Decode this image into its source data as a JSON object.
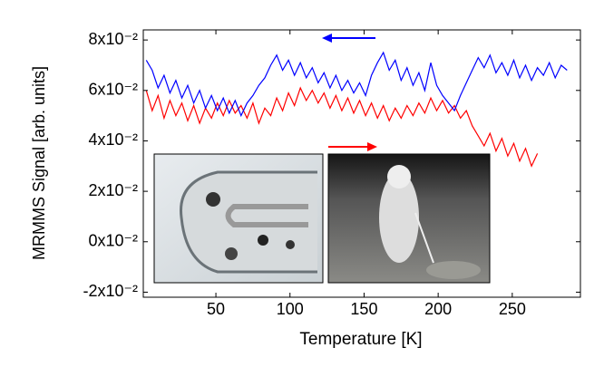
{
  "chart_data": {
    "type": "line",
    "x_label": "Temperature [K]",
    "y_label": "MRMMS Signal [arb. units]",
    "xlim": [
      1,
      296
    ],
    "xticks": [
      50,
      100,
      150,
      200,
      250
    ],
    "ylim": [
      -0.022,
      0.084
    ],
    "yticks": [
      {
        "value": -0.02,
        "label": "-2x10⁻²"
      },
      {
        "value": 0,
        "label": "0x10⁻²"
      },
      {
        "value": 0.02,
        "label": "2x10⁻²"
      },
      {
        "value": 0.04,
        "label": "4x10⁻²"
      },
      {
        "value": 0.06,
        "label": "6x10⁻²"
      },
      {
        "value": 0.08,
        "label": "8x10⁻²"
      }
    ],
    "x": [
      3,
      7,
      11,
      15,
      19,
      23,
      27,
      31,
      35,
      39,
      43,
      47,
      51,
      55,
      59,
      63,
      67,
      71,
      75,
      79,
      83,
      87,
      91,
      95,
      99,
      103,
      107,
      111,
      115,
      119,
      123,
      127,
      131,
      135,
      139,
      143,
      147,
      151,
      155,
      159,
      163,
      167,
      171,
      175,
      179,
      183,
      187,
      191,
      195,
      199,
      203,
      207,
      211,
      215,
      219,
      223,
      227,
      231,
      235,
      239,
      243,
      247,
      251,
      255,
      259,
      263,
      267,
      271,
      275,
      279,
      283,
      287
    ],
    "series": [
      {
        "color": "#ff0000",
        "values": [
          0.06,
          0.052,
          0.058,
          0.049,
          0.056,
          0.05,
          0.055,
          0.048,
          0.054,
          0.047,
          0.053,
          0.049,
          0.055,
          0.05,
          0.056,
          0.051,
          0.054,
          0.049,
          0.055,
          0.047,
          0.053,
          0.05,
          0.057,
          0.052,
          0.059,
          0.054,
          0.061,
          0.056,
          0.06,
          0.055,
          0.059,
          0.053,
          0.058,
          0.052,
          0.057,
          0.051,
          0.056,
          0.05,
          0.055,
          0.049,
          0.054,
          0.048,
          0.053,
          0.049,
          0.054,
          0.05,
          0.055,
          0.051,
          0.057,
          0.052,
          0.056,
          0.051,
          0.054,
          0.049,
          0.052,
          0.046,
          0.042,
          0.038,
          0.043,
          0.036,
          0.041,
          0.034,
          0.039,
          0.032,
          0.037,
          0.03,
          0.035,
          null,
          null,
          null,
          null,
          null
        ]
      },
      {
        "color": "#0000ff",
        "values": [
          0.072,
          0.068,
          0.061,
          0.066,
          0.059,
          0.064,
          0.057,
          0.062,
          0.055,
          0.06,
          0.053,
          0.058,
          0.052,
          0.057,
          0.051,
          0.056,
          0.05,
          0.055,
          0.058,
          0.062,
          0.065,
          0.07,
          0.074,
          0.068,
          0.072,
          0.066,
          0.071,
          0.065,
          0.069,
          0.063,
          0.067,
          0.061,
          0.066,
          0.06,
          0.064,
          0.059,
          0.063,
          0.058,
          0.066,
          0.071,
          0.075,
          0.068,
          0.072,
          0.064,
          0.069,
          0.062,
          0.067,
          0.06,
          0.071,
          0.062,
          0.058,
          0.055,
          0.052,
          0.058,
          0.063,
          0.068,
          0.073,
          0.069,
          0.074,
          0.067,
          0.071,
          0.066,
          0.072,
          0.065,
          0.07,
          0.064,
          0.069,
          0.066,
          0.071,
          0.065,
          0.07,
          0.068
        ]
      }
    ]
  }
}
